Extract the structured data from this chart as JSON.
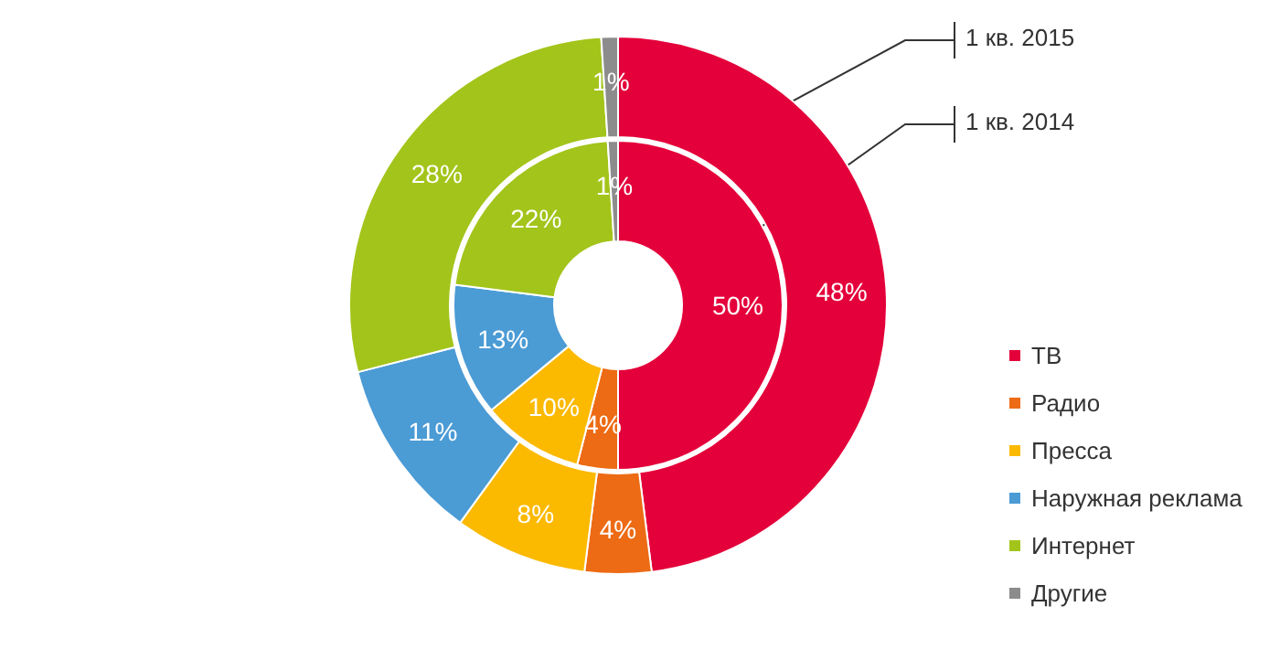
{
  "chart_data": {
    "type": "donut",
    "categories": [
      "ТВ",
      "Радио",
      "Пресса",
      "Наружная реклама",
      "Интернет",
      "Другие"
    ],
    "colors": [
      "#e4003a",
      "#ec6b14",
      "#fbb900",
      "#4b9bd5",
      "#a3c41a",
      "#8c8c8c"
    ],
    "series": [
      {
        "name": "1 кв. 2014",
        "values": [
          50,
          4,
          10,
          13,
          22,
          1
        ],
        "value_labels": [
          "50%",
          "4%",
          "10%",
          "13%",
          "22%",
          "1%"
        ]
      },
      {
        "name": "1 кв. 2015",
        "values": [
          48,
          4,
          8,
          11,
          28,
          1
        ],
        "value_labels": [
          "48%",
          "4%",
          "8%",
          "11%",
          "28%",
          "1%"
        ]
      }
    ],
    "legend": "right"
  }
}
